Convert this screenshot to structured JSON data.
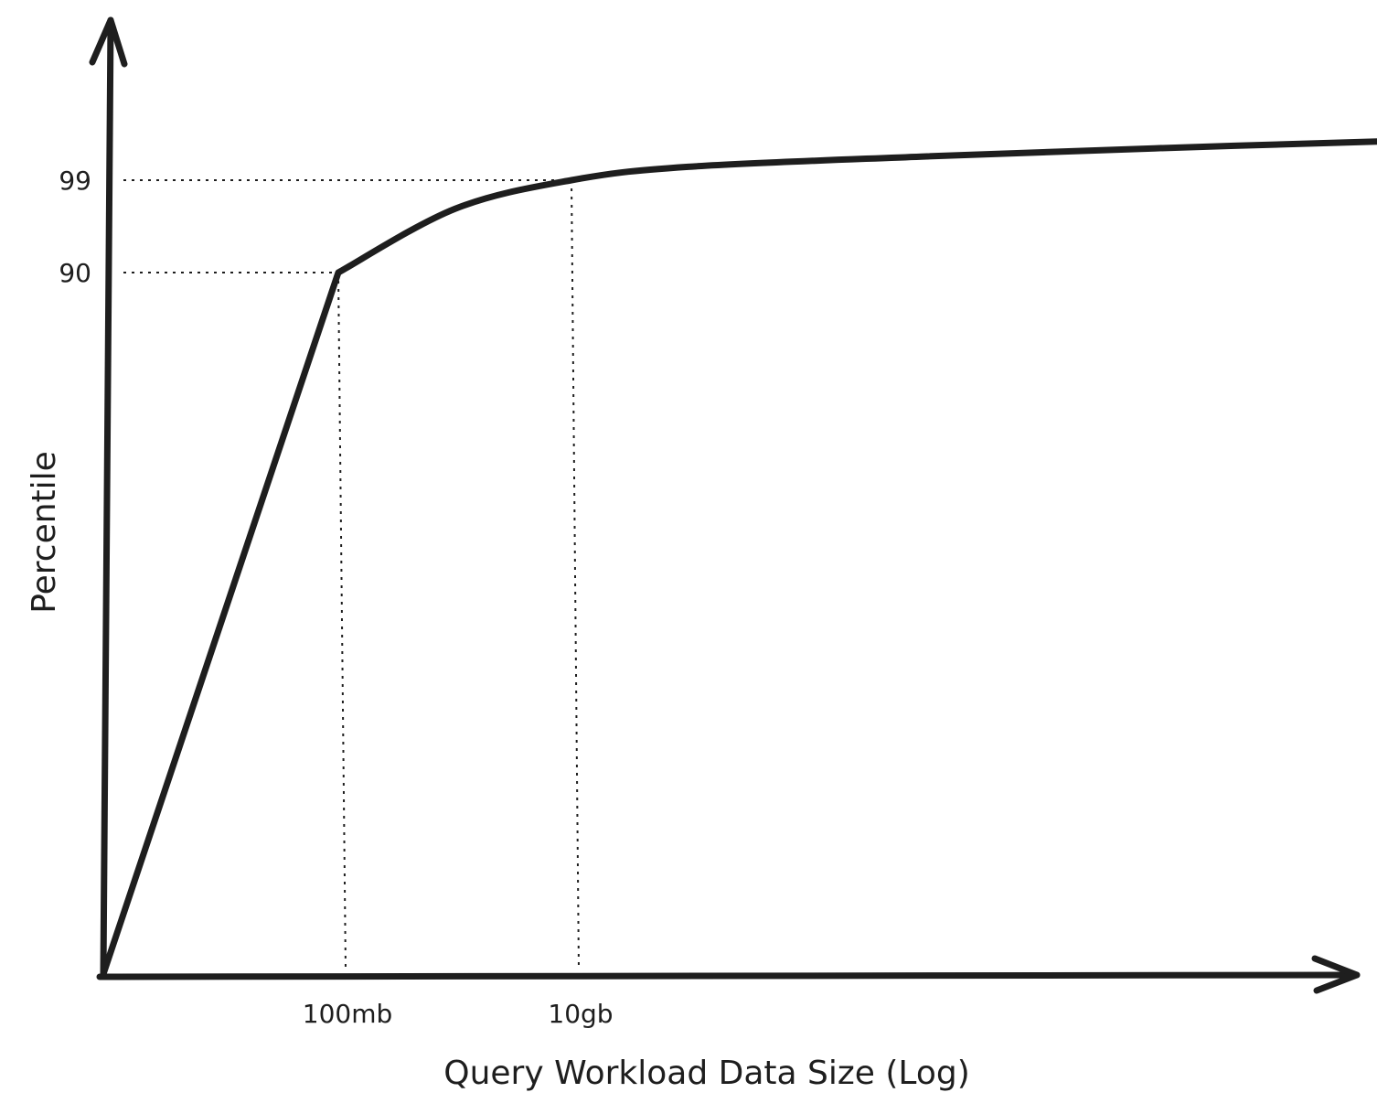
{
  "chart_data": {
    "type": "line",
    "xlabel": "Query Workload Data Size (Log)",
    "ylabel": "Percentile",
    "x_scale": "log",
    "x_ticks": [
      {
        "value": 100000000,
        "label": "100mb"
      },
      {
        "value": 10000000000,
        "label": "10gb"
      }
    ],
    "y_ticks": [
      {
        "value": 90,
        "label": "90"
      },
      {
        "value": 99,
        "label": "99"
      }
    ],
    "series": [
      {
        "points": [
          {
            "x": 0,
            "y": 0
          },
          {
            "x": 100000000,
            "y": 90
          },
          {
            "x": 1000000000,
            "y": 96.2
          },
          {
            "x": 10000000000,
            "y": 99
          },
          {
            "x": 100000000000,
            "y": 100.3
          },
          {
            "x": 10000000000000,
            "y": 101.3
          },
          {
            "x": 1000000000000000,
            "y": 102.1
          },
          {
            "x": 100000000000000000,
            "y": 102.8
          },
          {
            "x": 3000000000000000000,
            "y": 103.3
          }
        ]
      }
    ],
    "guides": [
      {
        "x": 100000000,
        "y": 90
      },
      {
        "x": 10000000000,
        "y": 99
      }
    ],
    "grid": false,
    "legend": "none"
  }
}
